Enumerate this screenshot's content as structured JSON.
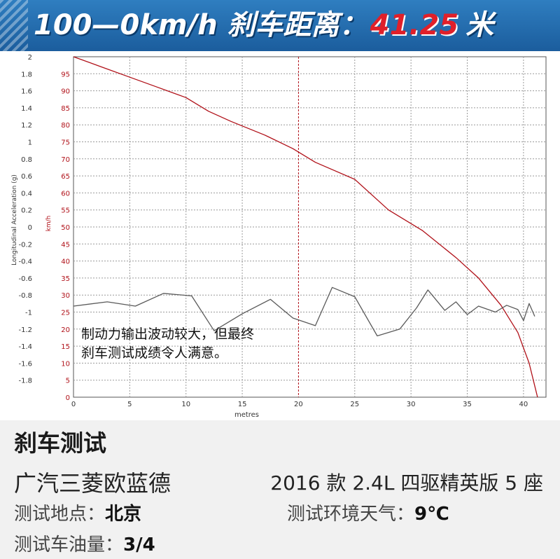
{
  "banner": {
    "prefix": "100—0km/h 刹车距离：",
    "value": "41.25",
    "unit": "米"
  },
  "chart_data": {
    "type": "line",
    "xlabel": "metres",
    "xlim": [
      0,
      42
    ],
    "x_ticks": [
      "0",
      "5",
      "10",
      "15",
      "20",
      "25",
      "30",
      "35",
      "40"
    ],
    "y_left": {
      "label": "Longitudinal Acceleration (g)",
      "ylim": [
        -2,
        2
      ],
      "ticks": [
        "2",
        "1.8",
        "1.6",
        "1.4",
        "1.2",
        "1",
        "0.8",
        "0.6",
        "0.4",
        "0.2",
        "0",
        "-0.2",
        "-0.4",
        "-0.6",
        "-0.8",
        "-1",
        "-1.2",
        "-1.4",
        "-1.6",
        "-1.8"
      ]
    },
    "y_right": {
      "label": "km/h",
      "ylim": [
        0,
        100
      ],
      "ticks": [
        "95",
        "90",
        "85",
        "80",
        "75",
        "70",
        "65",
        "60",
        "55",
        "50",
        "45",
        "40",
        "35",
        "30",
        "25",
        "20",
        "15",
        "10",
        "5",
        "0"
      ]
    },
    "grid": true,
    "series": [
      {
        "axis": "right",
        "color": "#b01018",
        "points": [
          [
            0,
            100
          ],
          [
            2.5,
            97
          ],
          [
            5,
            94
          ],
          [
            7.5,
            91
          ],
          [
            10,
            88
          ],
          [
            12,
            84
          ],
          [
            14,
            81
          ],
          [
            17,
            77
          ],
          [
            19.5,
            73
          ],
          [
            21.5,
            69
          ],
          [
            25,
            64
          ],
          [
            28,
            55
          ],
          [
            31,
            49
          ],
          [
            34,
            41
          ],
          [
            36,
            35
          ],
          [
            38,
            27
          ],
          [
            39.5,
            19
          ],
          [
            40.5,
            10
          ],
          [
            41.25,
            0
          ]
        ]
      },
      {
        "axis": "left",
        "color": "#5a5a5a",
        "points": [
          [
            0,
            -0.93
          ],
          [
            3,
            -0.88
          ],
          [
            5.5,
            -0.93
          ],
          [
            8,
            -0.78
          ],
          [
            10.5,
            -0.81
          ],
          [
            12.5,
            -1.22
          ],
          [
            15,
            -1.02
          ],
          [
            17.5,
            -0.85
          ],
          [
            19.5,
            -1.07
          ],
          [
            21.5,
            -1.16
          ],
          [
            23,
            -0.71
          ],
          [
            25,
            -0.82
          ],
          [
            27,
            -1.28
          ],
          [
            29,
            -1.2
          ],
          [
            30.5,
            -0.95
          ],
          [
            31.5,
            -0.74
          ],
          [
            33,
            -0.98
          ],
          [
            34,
            -0.88
          ],
          [
            35,
            -1.03
          ],
          [
            36,
            -0.93
          ],
          [
            37.5,
            -1.0
          ],
          [
            38.5,
            -0.92
          ],
          [
            39.5,
            -0.97
          ],
          [
            40,
            -1.1
          ],
          [
            40.5,
            -0.9
          ],
          [
            41,
            -1.05
          ]
        ]
      }
    ]
  },
  "annotation": {
    "line1": "制动力输出波动较大，但最终",
    "line2": "刹车测试成绩令人满意。"
  },
  "info": {
    "title": "刹车测试",
    "model": "广汽三菱欧蓝德",
    "version": "2016 款 2.4L 四驱精英版 5 座",
    "location_label": "测试地点：",
    "location_value": "北京",
    "weather_label": "测试环境天气：",
    "weather_value": "9℃",
    "fuel_label": "测试车油量：",
    "fuel_value": "3/4"
  }
}
